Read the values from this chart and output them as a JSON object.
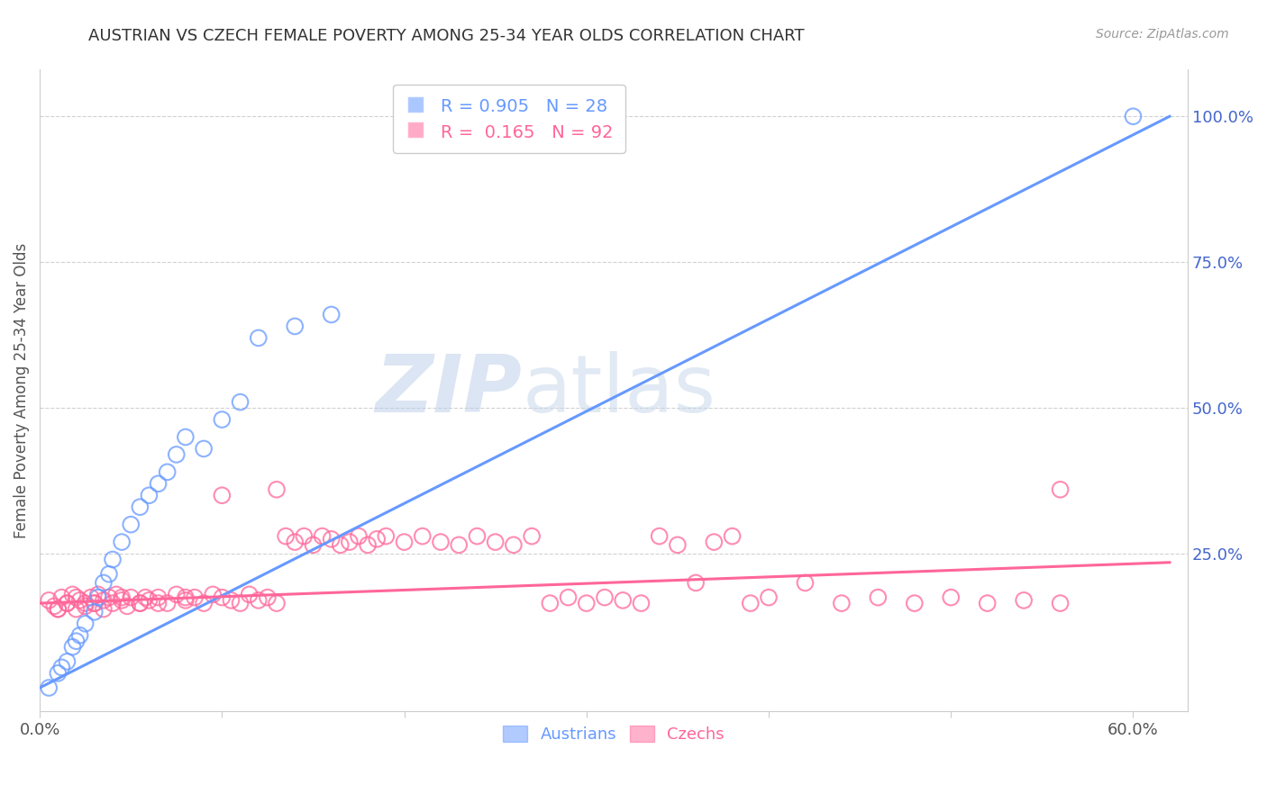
{
  "title": "AUSTRIAN VS CZECH FEMALE POVERTY AMONG 25-34 YEAR OLDS CORRELATION CHART",
  "source": "Source: ZipAtlas.com",
  "ylabel": "Female Poverty Among 25-34 Year Olds",
  "xlim": [
    0.0,
    0.63
  ],
  "ylim": [
    -0.02,
    1.08
  ],
  "background_color": "#ffffff",
  "grid_color": "#cccccc",
  "austria_color": "#6699ff",
  "czech_color": "#ff6699",
  "austria_scatter_x": [
    0.005,
    0.01,
    0.012,
    0.015,
    0.018,
    0.02,
    0.022,
    0.025,
    0.03,
    0.032,
    0.035,
    0.038,
    0.04,
    0.045,
    0.05,
    0.055,
    0.06,
    0.065,
    0.07,
    0.075,
    0.08,
    0.09,
    0.1,
    0.11,
    0.12,
    0.14,
    0.16,
    0.6
  ],
  "austria_scatter_y": [
    0.02,
    0.045,
    0.055,
    0.065,
    0.09,
    0.1,
    0.11,
    0.13,
    0.15,
    0.175,
    0.2,
    0.215,
    0.24,
    0.27,
    0.3,
    0.33,
    0.35,
    0.37,
    0.39,
    0.42,
    0.45,
    0.43,
    0.48,
    0.51,
    0.62,
    0.64,
    0.66,
    1.0
  ],
  "czech_scatter_x": [
    0.005,
    0.008,
    0.01,
    0.012,
    0.015,
    0.018,
    0.02,
    0.022,
    0.025,
    0.028,
    0.03,
    0.032,
    0.035,
    0.038,
    0.04,
    0.042,
    0.045,
    0.048,
    0.05,
    0.055,
    0.058,
    0.06,
    0.065,
    0.07,
    0.075,
    0.08,
    0.085,
    0.09,
    0.095,
    0.1,
    0.105,
    0.11,
    0.115,
    0.12,
    0.125,
    0.13,
    0.135,
    0.14,
    0.145,
    0.15,
    0.155,
    0.16,
    0.165,
    0.17,
    0.175,
    0.18,
    0.185,
    0.19,
    0.2,
    0.21,
    0.22,
    0.23,
    0.24,
    0.25,
    0.26,
    0.27,
    0.28,
    0.29,
    0.3,
    0.31,
    0.32,
    0.33,
    0.34,
    0.35,
    0.36,
    0.37,
    0.38,
    0.39,
    0.4,
    0.42,
    0.44,
    0.46,
    0.48,
    0.5,
    0.52,
    0.54,
    0.56,
    0.01,
    0.015,
    0.02,
    0.025,
    0.03,
    0.035,
    0.045,
    0.055,
    0.065,
    0.08,
    0.1,
    0.13,
    0.56
  ],
  "czech_scatter_y": [
    0.17,
    0.16,
    0.155,
    0.175,
    0.165,
    0.18,
    0.155,
    0.17,
    0.16,
    0.175,
    0.165,
    0.18,
    0.17,
    0.175,
    0.165,
    0.18,
    0.17,
    0.16,
    0.175,
    0.165,
    0.175,
    0.17,
    0.175,
    0.165,
    0.18,
    0.17,
    0.175,
    0.165,
    0.18,
    0.175,
    0.17,
    0.165,
    0.18,
    0.17,
    0.175,
    0.165,
    0.28,
    0.27,
    0.28,
    0.265,
    0.28,
    0.275,
    0.265,
    0.27,
    0.28,
    0.265,
    0.275,
    0.28,
    0.27,
    0.28,
    0.27,
    0.265,
    0.28,
    0.27,
    0.265,
    0.28,
    0.165,
    0.175,
    0.165,
    0.175,
    0.17,
    0.165,
    0.28,
    0.265,
    0.2,
    0.27,
    0.28,
    0.165,
    0.175,
    0.2,
    0.165,
    0.175,
    0.165,
    0.175,
    0.165,
    0.17,
    0.165,
    0.155,
    0.165,
    0.175,
    0.165,
    0.165,
    0.155,
    0.175,
    0.165,
    0.165,
    0.175,
    0.35,
    0.36,
    0.36
  ],
  "austria_line_x": [
    0.0,
    0.62
  ],
  "austria_line_y": [
    0.02,
    1.0
  ],
  "czech_line_x": [
    0.0,
    0.62
  ],
  "czech_line_y": [
    0.165,
    0.235
  ],
  "legend_austria_label": "Austrians",
  "legend_czech_label": "Czechs",
  "watermark_zip": "ZIP",
  "watermark_atlas": "atlas",
  "title_color": "#333333",
  "axis_label_color": "#555555",
  "right_axis_color": "#4466cc",
  "yticks_right": [
    0.0,
    0.25,
    0.5,
    0.75,
    1.0
  ],
  "yticklabels_right": [
    "",
    "25.0%",
    "50.0%",
    "75.0%",
    "100.0%"
  ]
}
